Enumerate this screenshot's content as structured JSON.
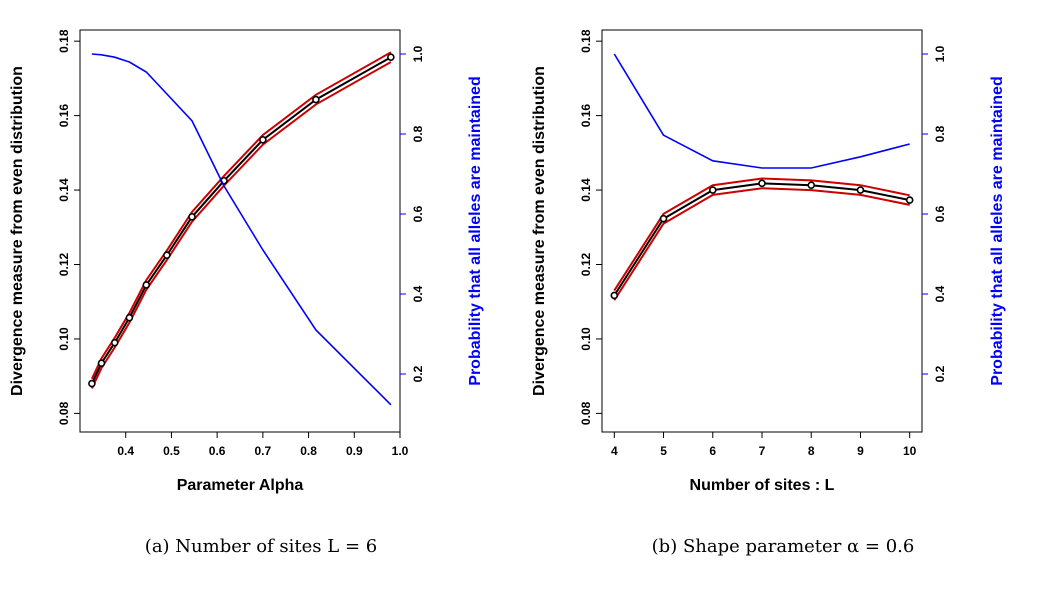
{
  "chart_data": [
    {
      "type": "line",
      "caption": "(a) Number of sites L = 6",
      "xlabel": "Parameter Alpha",
      "ylabel": "Divergence measure from even distribution",
      "ylabel_right": "Probability that all alleles  are maintained",
      "xlim": [
        0.3,
        1.0
      ],
      "ylim": [
        0.075,
        0.183
      ],
      "ylim_right": [
        0.055,
        1.06
      ],
      "xticks": [
        0.4,
        0.5,
        0.6,
        0.7,
        0.8,
        0.9,
        1.0
      ],
      "xtick_labels": [
        "0.4",
        "0.5",
        "0.6",
        "0.7",
        "0.8",
        "0.9",
        "1.0"
      ],
      "yticks": [
        0.08,
        0.1,
        0.12,
        0.14,
        0.16,
        0.18
      ],
      "ytick_labels": [
        "0.08",
        "0.10",
        "0.12",
        "0.14",
        "0.16",
        "0.18"
      ],
      "yticks_right": [
        0.2,
        0.4,
        0.6,
        0.8,
        1.0
      ],
      "ytick_labels_right": [
        "0.2",
        "0.4",
        "0.6",
        "0.8",
        "1.0"
      ],
      "grid": false,
      "series": [
        {
          "axis": "left",
          "color": "#000000",
          "band_color": "#cc0000",
          "markers": true,
          "x": [
            0.326,
            0.347,
            0.376,
            0.408,
            0.445,
            0.49,
            0.545,
            0.615,
            0.7,
            0.816,
            0.98
          ],
          "y": [
            0.088,
            0.0935,
            0.099,
            0.1057,
            0.1145,
            0.1225,
            0.1328,
            0.1425,
            0.1535,
            0.1643,
            0.1757
          ],
          "band": 0.0013
        },
        {
          "axis": "right",
          "color": "#0000ff",
          "markers": false,
          "x": [
            0.326,
            0.347,
            0.376,
            0.408,
            0.445,
            0.49,
            0.545,
            0.615,
            0.7,
            0.816,
            0.98
          ],
          "y": [
            1.0,
            0.998,
            0.992,
            0.98,
            0.955,
            0.9,
            0.833,
            0.67,
            0.51,
            0.31,
            0.123
          ]
        }
      ]
    },
    {
      "type": "line",
      "caption": "(b) Shape parameter α = 0.6",
      "xlabel": "Number of sites : L",
      "ylabel": "Divergence measure from even distribution",
      "ylabel_right": "Probability that all alleles  are maintained",
      "xlim": [
        3.75,
        10.25
      ],
      "ylim": [
        0.075,
        0.183
      ],
      "ylim_right": [
        0.055,
        1.06
      ],
      "xticks": [
        4,
        5,
        6,
        7,
        8,
        9,
        10
      ],
      "xtick_labels": [
        "4",
        "5",
        "6",
        "7",
        "8",
        "9",
        "10"
      ],
      "yticks": [
        0.08,
        0.1,
        0.12,
        0.14,
        0.16,
        0.18
      ],
      "ytick_labels": [
        "0.08",
        "0.10",
        "0.12",
        "0.14",
        "0.16",
        "0.18"
      ],
      "yticks_right": [
        0.2,
        0.4,
        0.6,
        0.8,
        1.0
      ],
      "ytick_labels_right": [
        "0.2",
        "0.4",
        "0.6",
        "0.8",
        "1.0"
      ],
      "grid": false,
      "series": [
        {
          "axis": "left",
          "color": "#000000",
          "band_color": "#cc0000",
          "markers": true,
          "x": [
            4,
            5,
            6,
            7,
            8,
            9,
            10
          ],
          "y": [
            0.1117,
            0.1323,
            0.14,
            0.1418,
            0.1413,
            0.14,
            0.1373
          ],
          "band": 0.0013
        },
        {
          "axis": "right",
          "color": "#0000ff",
          "markers": false,
          "x": [
            4,
            5,
            6,
            7,
            8,
            9,
            10
          ],
          "y": [
            1.0,
            0.797,
            0.733,
            0.715,
            0.715,
            0.743,
            0.775
          ]
        }
      ]
    }
  ]
}
